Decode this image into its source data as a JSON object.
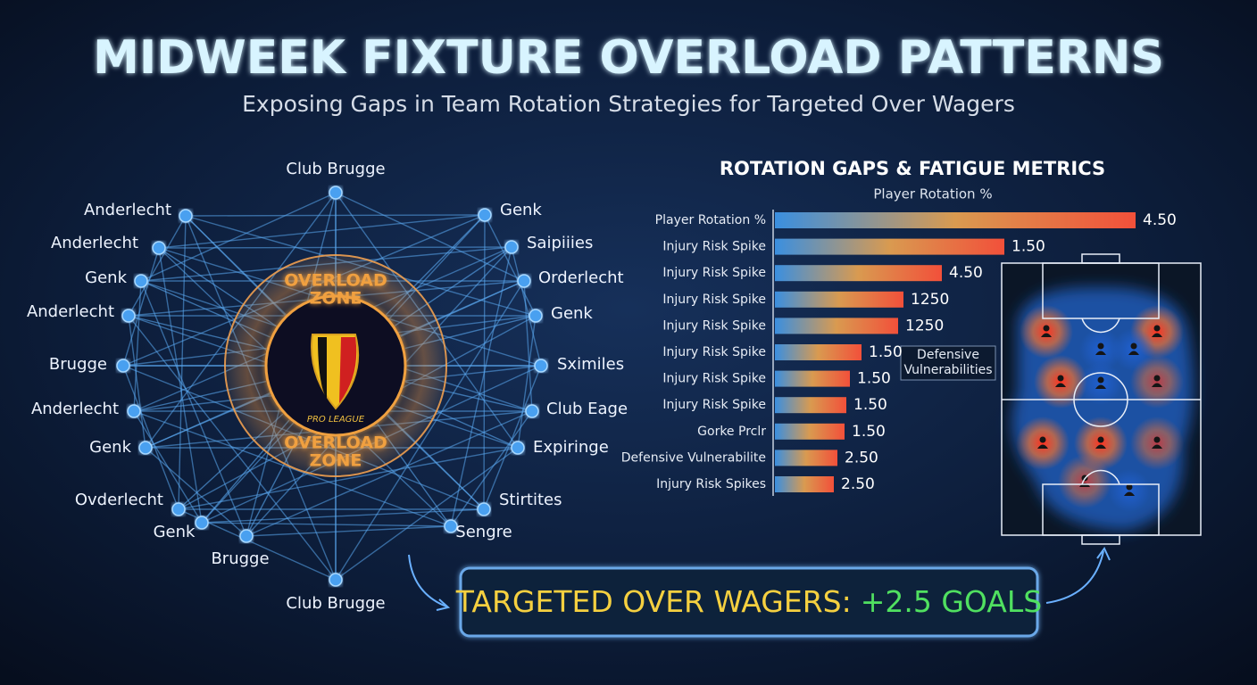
{
  "header": {
    "title": "MIDWEEK FIXTURE OVERLOAD PATTERNS",
    "subtitle": "Exposing Gaps in Team Rotation Strategies for Targeted Over Wagers"
  },
  "network": {
    "nodes": [
      "Club Brugge",
      "Anderlecht",
      "Anderlecht",
      "Genk",
      "Anderlecht",
      "Brugge",
      "Anderlecht",
      "Genk",
      "Ovderlecht",
      "Genk",
      "Brugge",
      "Club Brugge",
      "Genk",
      "Saipiiies",
      "Orderlecht",
      "Genk",
      "Sximiles",
      "Club Eage",
      "Expiringe",
      "Stirtites",
      "Sengre"
    ],
    "zones": [
      {
        "line1": "OVERLOAD",
        "line2": "ZONE"
      },
      {
        "line1": "OVERLOAD",
        "line2": "ZONE"
      }
    ],
    "logo_text": "PRO LEAGUE"
  },
  "metrics": {
    "title": "ROTATION GAPS & FATIGUE METRICS",
    "axis_label": "Player Rotation %",
    "rows": [
      {
        "label": "Player Rotation %",
        "value": "4.50"
      },
      {
        "label": "Injury Risk Spike",
        "value": "1.50"
      },
      {
        "label": "Injury Risk Spike",
        "value": "4.50"
      },
      {
        "label": "Injury Risk Spike",
        "value": "1250"
      },
      {
        "label": "Injury Risk Spike",
        "value": "1250"
      },
      {
        "label": "Injury Risk Spike",
        "value": "1.50"
      },
      {
        "label": "Injury Risk Spike",
        "value": "1.50"
      },
      {
        "label": "Injury Risk Spike",
        "value": "1.50"
      },
      {
        "label": "Gorke Prclr",
        "value": "1.50"
      },
      {
        "label": "Defensive Vulnerabilite",
        "value": "2.50"
      },
      {
        "label": "Injury Risk Spikes",
        "value": "2.50"
      }
    ],
    "callout": {
      "line1": "Defensive",
      "line2": "Vulnerabilities"
    }
  },
  "cta": {
    "text": "TARGETED OVER WAGERS:",
    "highlight": "+2.5 GOALS"
  }
}
